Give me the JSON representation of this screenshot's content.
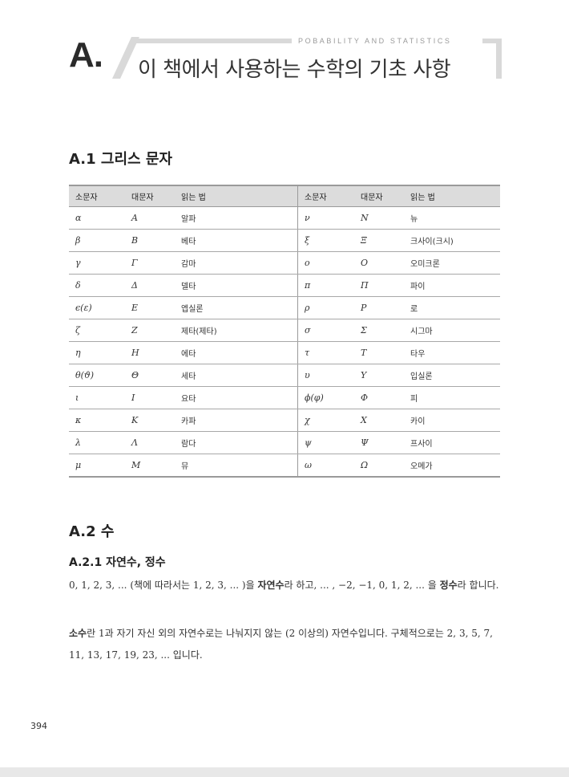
{
  "header": {
    "letter": "A.",
    "subtitle": "POBABILITY AND STATISTICS",
    "title": "이 책에서 사용하는 수학의 기초 사항"
  },
  "section_a1": {
    "title": "A.1  그리스 문자"
  },
  "greek_table": {
    "headers": [
      "소문자",
      "대문자",
      "읽는 법",
      "소문자",
      "대문자",
      "읽는 법"
    ],
    "rows": [
      [
        "α",
        "A",
        "알파",
        "ν",
        "N",
        "뉴"
      ],
      [
        "β",
        "B",
        "베타",
        "ξ",
        "Ξ",
        "크사이(크시)"
      ],
      [
        "γ",
        "Γ",
        "감마",
        "o",
        "O",
        "오미크론"
      ],
      [
        "δ",
        "Δ",
        "델타",
        "π",
        "Π",
        "파이"
      ],
      [
        "ϵ(ε)",
        "E",
        "엡실론",
        "ρ",
        "P",
        "로"
      ],
      [
        "ζ",
        "Z",
        "제타(제타)",
        "σ",
        "Σ",
        "시그마"
      ],
      [
        "η",
        "H",
        "에타",
        "τ",
        "T",
        "타우"
      ],
      [
        "θ(ϑ)",
        "Θ",
        "세타",
        "υ",
        "Υ",
        "입실론"
      ],
      [
        "ι",
        "I",
        "요타",
        "ϕ(φ)",
        "Φ",
        "피"
      ],
      [
        "κ",
        "K",
        "카파",
        "χ",
        "X",
        "카이"
      ],
      [
        "λ",
        "Λ",
        "람다",
        "ψ",
        "Ψ",
        "프사이"
      ],
      [
        "μ",
        "M",
        "뮤",
        "ω",
        "Ω",
        "오메가"
      ]
    ]
  },
  "section_a2": {
    "title": "A.2  수"
  },
  "section_a21": {
    "title": "A.2.1  자연수, 정수"
  },
  "paragraph1": {
    "part1": "0, 1, 2, 3, ... (책에 따라서는 1, 2, 3, ... )을 ",
    "bold1": "자연수",
    "part2": "라 하고, ... , −2, −1, 0, 1, 2, ... 을 ",
    "bold2": "정수",
    "part3": "라 합니다."
  },
  "paragraph2": {
    "bold1": "소수",
    "part1": "란 1과 자기 자신 외의 자연수로는 나눠지지 않는 (2 이상의) 자연수입니다. 구체적으로는 2, 3, 5, 7, 11, 13, 17, 19, 23, ... 입니다."
  },
  "page_number": "394"
}
